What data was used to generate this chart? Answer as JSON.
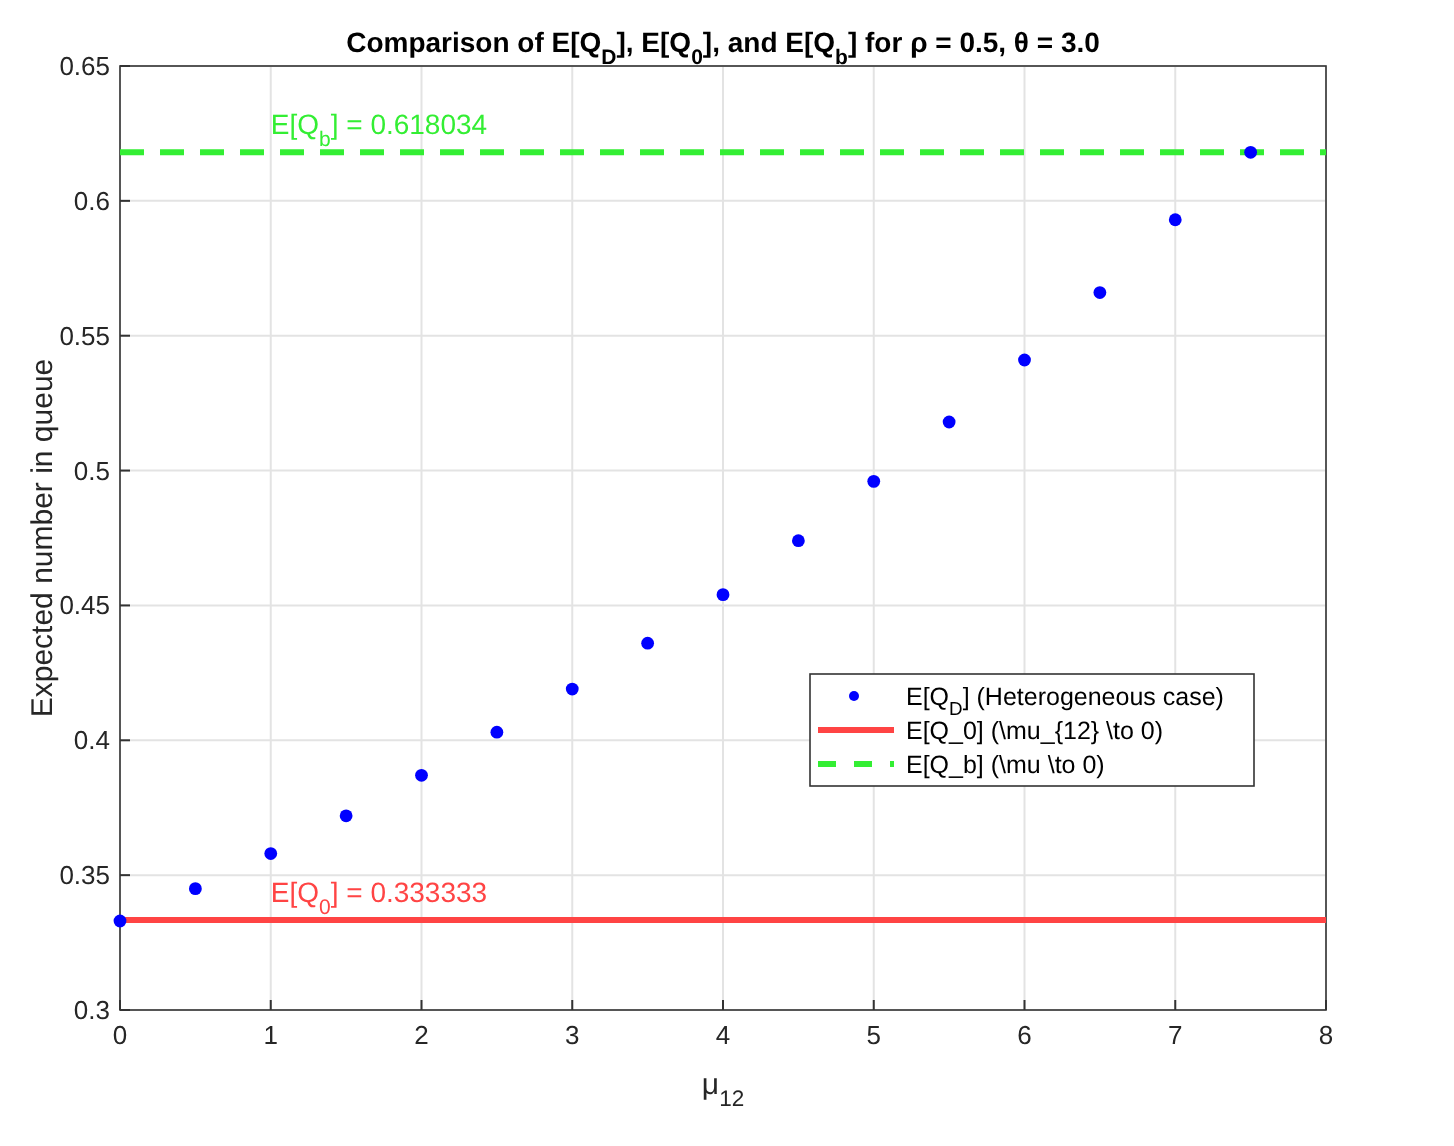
{
  "chart_data": {
    "type": "scatter",
    "title": "Comparison of E[Q$_{D}$], E[Q$_{0}$], and E[Q$_{b}$] for ρ = 0.5, θ = 3.0",
    "xlabel": "μ$_{12}$",
    "ylabel": "Expected number in queue",
    "xlim": [
      0,
      8
    ],
    "xticks": [
      0,
      1,
      2,
      3,
      4,
      5,
      6,
      7,
      8
    ],
    "ylim": [
      0.3,
      0.65
    ],
    "yticks": [
      0.3,
      0.35,
      0.4,
      0.45,
      0.5,
      0.55,
      0.6,
      0.65
    ],
    "grid": true,
    "legend": "right",
    "series": [
      {
        "name": "E[Q$_{D}$] (Heterogeneous case)",
        "marker": "circle",
        "color": "#0000ff",
        "x": [
          0,
          0.5,
          1,
          1.5,
          2,
          2.5,
          3,
          3.5,
          4,
          4.5,
          5,
          5.5,
          6,
          6.5,
          7,
          7.5
        ],
        "values": [
          0.333,
          0.345,
          0.358,
          0.372,
          0.387,
          0.403,
          0.419,
          0.436,
          0.454,
          0.474,
          0.496,
          0.518,
          0.541,
          0.566,
          0.593,
          0.618
        ]
      },
      {
        "name": "E[Q_0] (\\mu_{12} \\to 0)",
        "type": "line",
        "line_style": "solid",
        "color": "#ff4444",
        "x": [
          0,
          8
        ],
        "values": [
          0.333333,
          0.333333
        ]
      },
      {
        "name": "E[Q_b] (\\mu \\to 0)",
        "type": "line",
        "line_style": "dashed",
        "color": "#33ee33",
        "x": [
          0,
          8
        ],
        "values": [
          0.618034,
          0.618034
        ]
      }
    ],
    "annotations": [
      {
        "text": "E[Q$_{b}$] = 0.618034",
        "x": 1,
        "y": 0.618034
      },
      {
        "text": "E[Q$_{0}$] = 0.333333",
        "x": 1,
        "y": 0.333333
      }
    ]
  }
}
